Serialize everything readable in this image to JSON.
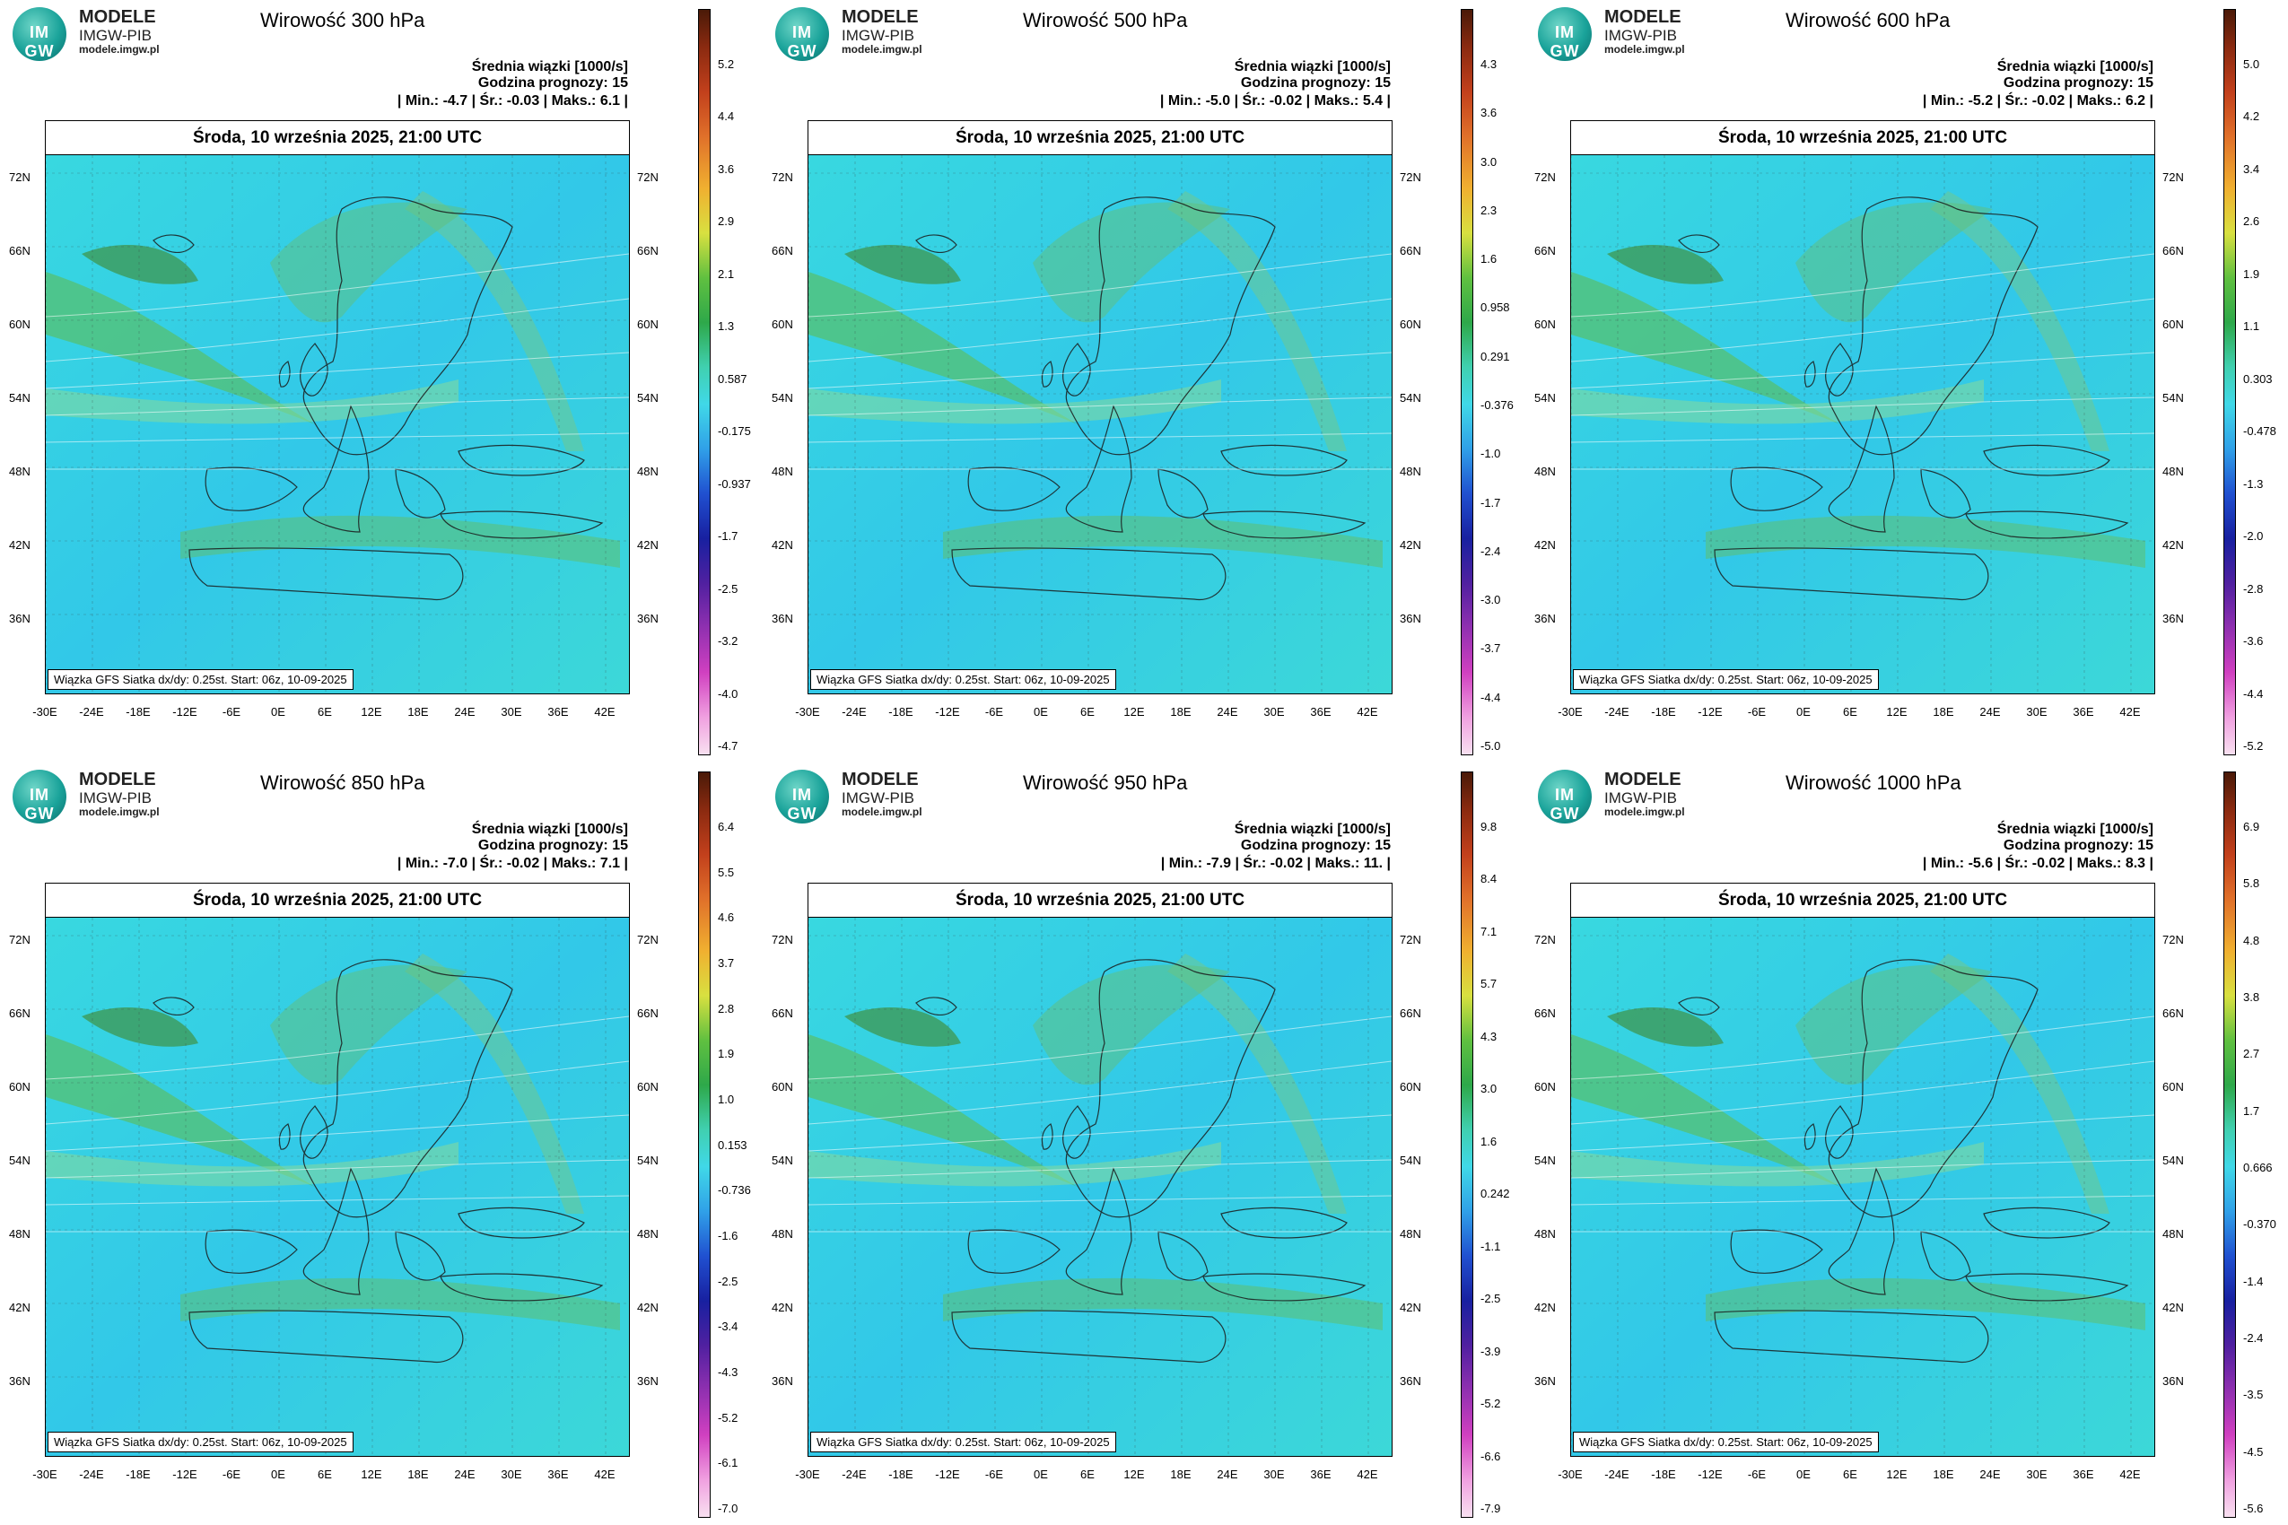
{
  "logo": {
    "title": "MODELE",
    "subtitle": "IMGW-PIB",
    "url": "modele.imgw.pl",
    "mark": "IM GW"
  },
  "common": {
    "header_line1": "Średnia wiązki [1000/s]",
    "header_line2": "Godzina prognozy: 15",
    "date": "Środa, 10 września 2025, 21:00 UTC",
    "footer": "Wiązka GFS Siatka dx/dy: 0.25st. Start: 06z, 10-09-2025",
    "lat_labels_left": [
      "72N",
      "66N",
      "60N",
      "54N",
      "48N",
      "42N",
      "36N"
    ],
    "lat_labels_right": [
      "72N",
      "66N",
      "60N",
      "54N",
      "48N",
      "42N",
      "36N"
    ],
    "lon_labels": [
      "-30E",
      "-24E",
      "-18E",
      "-12E",
      "-6E",
      "0E",
      "6E",
      "12E",
      "18E",
      "24E",
      "30E",
      "36E",
      "42E"
    ]
  },
  "panels": [
    {
      "title": "Wirowość 300 hPa",
      "stats": "| Min.: -4.7 | Śr.: -0.03 | Maks.: 6.1 |",
      "colorbar": [
        "5.2",
        "4.4",
        "3.6",
        "2.9",
        "2.1",
        "1.3",
        "0.587",
        "-0.175",
        "-0.937",
        "-1.7",
        "-2.5",
        "-3.2",
        "-4.0",
        "-4.7"
      ]
    },
    {
      "title": "Wirowość 500 hPa",
      "stats": "| Min.: -5.0 | Śr.: -0.02 | Maks.: 5.4 |",
      "colorbar": [
        "4.3",
        "3.6",
        "3.0",
        "2.3",
        "1.6",
        "0.958",
        "0.291",
        "-0.376",
        "-1.0",
        "-1.7",
        "-2.4",
        "-3.0",
        "-3.7",
        "-4.4",
        "-5.0"
      ]
    },
    {
      "title": "Wirowość 600 hPa",
      "stats": "| Min.: -5.2 | Śr.: -0.02 | Maks.: 6.2 |",
      "colorbar": [
        "5.0",
        "4.2",
        "3.4",
        "2.6",
        "1.9",
        "1.1",
        "0.303",
        "-0.478",
        "-1.3",
        "-2.0",
        "-2.8",
        "-3.6",
        "-4.4",
        "-5.2"
      ]
    },
    {
      "title": "Wirowość 850 hPa",
      "stats": "| Min.: -7.0 | Śr.: -0.02 | Maks.: 7.1 |",
      "colorbar": [
        "6.4",
        "5.5",
        "4.6",
        "3.7",
        "2.8",
        "1.9",
        "1.0",
        "0.153",
        "-0.736",
        "-1.6",
        "-2.5",
        "-3.4",
        "-4.3",
        "-5.2",
        "-6.1",
        "-7.0"
      ]
    },
    {
      "title": "Wirowość 950 hPa",
      "stats": "| Min.: -7.9 | Śr.: -0.02 | Maks.: 11. |",
      "colorbar": [
        "9.8",
        "8.4",
        "7.1",
        "5.7",
        "4.3",
        "3.0",
        "1.6",
        "0.242",
        "-1.1",
        "-2.5",
        "-3.9",
        "-5.2",
        "-6.6",
        "-7.9"
      ]
    },
    {
      "title": "Wirowość 1000 hPa",
      "stats": "| Min.: -5.6 | Śr.: -0.02 | Maks.: 8.3 |",
      "colorbar": [
        "6.9",
        "5.8",
        "4.8",
        "3.8",
        "2.7",
        "1.7",
        "0.666",
        "-0.370",
        "-1.4",
        "-2.4",
        "-3.5",
        "-4.5",
        "-5.6"
      ]
    }
  ]
}
